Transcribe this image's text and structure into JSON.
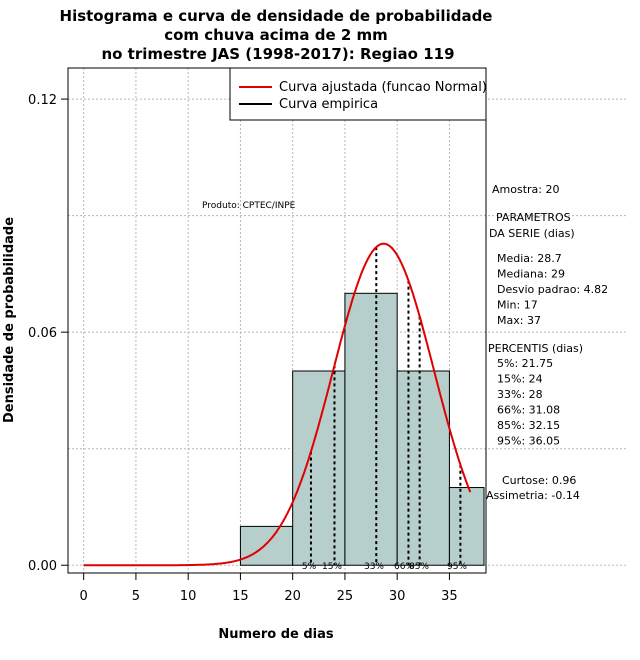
{
  "chart_data": {
    "type": "bar",
    "title_lines": [
      "Histograma e curva de densidade de probabilidade",
      "com chuva acima de 2 mm",
      "no trimestre JAS (1998-2017): Regiao 119"
    ],
    "xlabel": "Numero de dias",
    "ylabel": "Densidade de probabilidade",
    "xlim": [
      -1.5,
      38.5
    ],
    "ylim": [
      -0.002,
      0.128
    ],
    "x_ticks": [
      0,
      5,
      10,
      15,
      20,
      25,
      30,
      35
    ],
    "y_ticks": [
      0.0,
      0.06,
      0.12
    ],
    "y_tick_labels": [
      "0.00",
      "0.06",
      "0.12"
    ],
    "grid": true,
    "bars": [
      {
        "x0": 15,
        "x1": 20,
        "value": 0.01
      },
      {
        "x0": 20,
        "x1": 25,
        "value": 0.05
      },
      {
        "x0": 25,
        "x1": 30,
        "value": 0.07
      },
      {
        "x0": 30,
        "x1": 35,
        "value": 0.05
      },
      {
        "x0": 35,
        "x1": 38.5,
        "value": 0.02
      }
    ],
    "bar_color": "#b6cecc",
    "series": [
      {
        "name": "Curva ajustada (funcao Normal)",
        "type": "line",
        "color": "#e00000",
        "distribution": "normal",
        "mean": 28.7,
        "sd": 4.82,
        "x_range": [
          0,
          37
        ]
      },
      {
        "name": "Curva empirica",
        "type": "line",
        "color": "#000000"
      }
    ],
    "legend_position": "top-right",
    "percentiles": [
      {
        "label": "5%",
        "value": 21.75
      },
      {
        "label": "15%",
        "value": 24
      },
      {
        "label": "33%",
        "value": 28
      },
      {
        "label": "66%",
        "value": 31.08
      },
      {
        "label": "85%",
        "value": 32.15
      },
      {
        "label": "95%",
        "value": 36.05
      }
    ],
    "annotations": {
      "produto": "Produto: CPTEC/INPE",
      "amostra": "Amostra: 20",
      "parametros_title": [
        "PARAMETROS",
        "DA SERIE (dias)"
      ],
      "parametros": [
        "Media: 28.7",
        "Mediana: 29",
        "Desvio padrao: 4.82",
        "Min: 17",
        "Max: 37"
      ],
      "percentis_title": "PERCENTIS (dias)",
      "percentis": [
        "5%: 21.75",
        "15%: 24",
        "33%: 28",
        "66%: 31.08",
        "85%: 32.15",
        "95%: 36.05"
      ],
      "curtose": "Curtose: 0.96",
      "assimetria": "Assimetria: -0.14"
    }
  }
}
